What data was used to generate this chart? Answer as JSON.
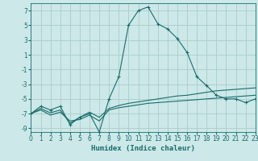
{
  "title": "",
  "xlabel": "Humidex (Indice chaleur)",
  "ylabel": "",
  "bg_color": "#cce8e8",
  "grid_color": "#aacccc",
  "line_color": "#1a6b6b",
  "marker": "+",
  "x": [
    0,
    1,
    2,
    3,
    4,
    5,
    6,
    7,
    8,
    9,
    10,
    11,
    12,
    13,
    14,
    15,
    16,
    17,
    18,
    19,
    20,
    21,
    22,
    23
  ],
  "y_main": [
    -7,
    -6,
    -6.5,
    -6,
    -8.5,
    -7.5,
    -7,
    -9.5,
    -5,
    -2,
    5,
    7,
    7.5,
    5.2,
    4.5,
    3.2,
    1.3,
    -2,
    -3.2,
    -4.5,
    -5,
    -5,
    -5.5,
    -5
  ],
  "y_line2": [
    -7,
    -6.3,
    -6.9,
    -6.5,
    -8.3,
    -7.5,
    -6.8,
    -7.5,
    -6.3,
    -5.9,
    -5.6,
    -5.4,
    -5.2,
    -5.0,
    -4.8,
    -4.6,
    -4.5,
    -4.3,
    -4.1,
    -3.9,
    -3.8,
    -3.7,
    -3.6,
    -3.5
  ],
  "y_line3": [
    -7,
    -6.5,
    -7.2,
    -6.8,
    -8.0,
    -7.8,
    -7.2,
    -8.0,
    -6.5,
    -6.2,
    -6.0,
    -5.8,
    -5.6,
    -5.5,
    -5.4,
    -5.3,
    -5.2,
    -5.1,
    -5.0,
    -4.9,
    -4.8,
    -4.7,
    -4.6,
    -4.5
  ],
  "xlim": [
    0,
    23
  ],
  "ylim": [
    -9.5,
    8.0
  ],
  "yticks": [
    -9,
    -7,
    -5,
    -3,
    -1,
    1,
    3,
    5,
    7
  ],
  "xticks": [
    0,
    1,
    2,
    3,
    4,
    5,
    6,
    7,
    8,
    9,
    10,
    11,
    12,
    13,
    14,
    15,
    16,
    17,
    18,
    19,
    20,
    21,
    22,
    23
  ],
  "linewidth": 0.8,
  "markersize": 3.5,
  "label_fontsize": 6.5,
  "tick_fontsize": 5.5
}
